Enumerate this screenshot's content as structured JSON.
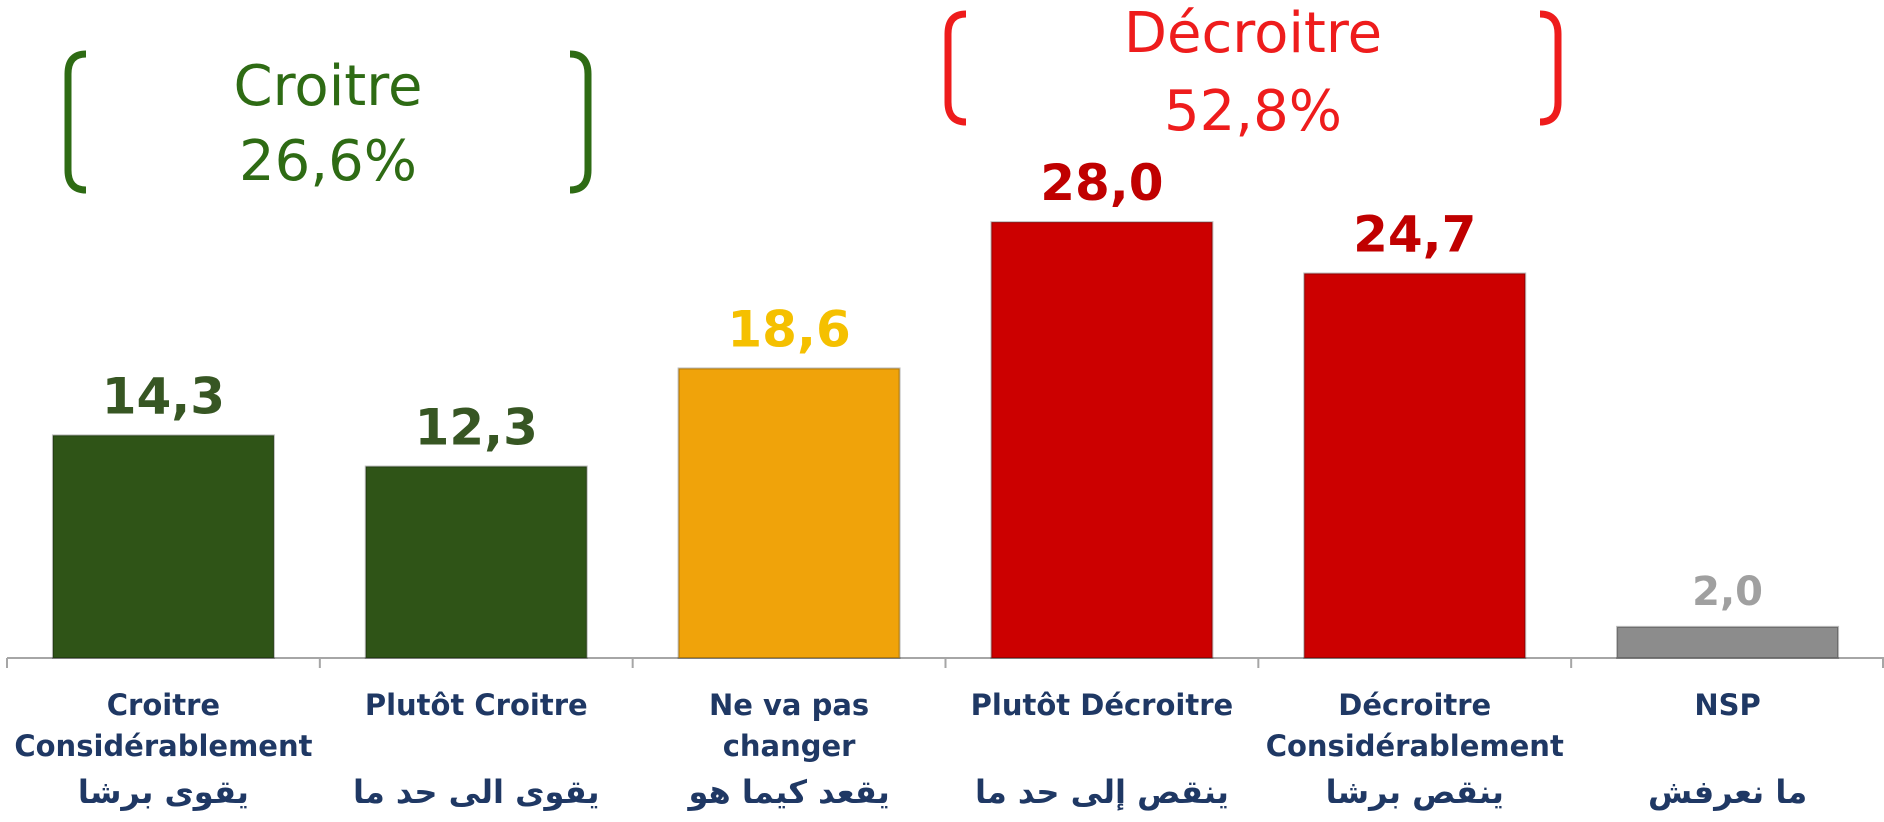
{
  "chart_data": {
    "type": "bar",
    "categories": [
      [
        "Croitre",
        "Considérablement"
      ],
      [
        "Plutôt Croitre"
      ],
      [
        "Ne va pas",
        "changer"
      ],
      [
        "Plutôt Décroitre"
      ],
      [
        "Décroitre",
        "Considérablement"
      ],
      [
        "NSP"
      ]
    ],
    "categories_arabic": [
      "يقوى برشا",
      "يقوى الى حد ما",
      "يقعد كيما هو",
      "ينقص إلى حد ما",
      "ينقص برشا",
      "ما نعرفش"
    ],
    "values": [
      14.3,
      12.3,
      18.6,
      28.0,
      24.7,
      2.0
    ],
    "value_labels": [
      "14,3",
      "12,3",
      "18,6",
      "28,0",
      "24,7",
      "2,0"
    ],
    "colors": [
      "#2f5417",
      "#2f5417",
      "#f0a30a",
      "#cc0000",
      "#cc0000",
      "#8c8c8c"
    ],
    "label_colors": [
      "#375623",
      "#375623",
      "#f5c000",
      "#c00000",
      "#c00000",
      "#a0a0a0"
    ],
    "ylim": [
      0,
      30
    ],
    "annotations": [
      {
        "lines": [
          "Croitre",
          "26,6%"
        ],
        "color": "#2e6b14"
      },
      {
        "lines": [
          "Décroitre",
          "52,8%"
        ],
        "color": "#ee1c1c"
      }
    ]
  }
}
